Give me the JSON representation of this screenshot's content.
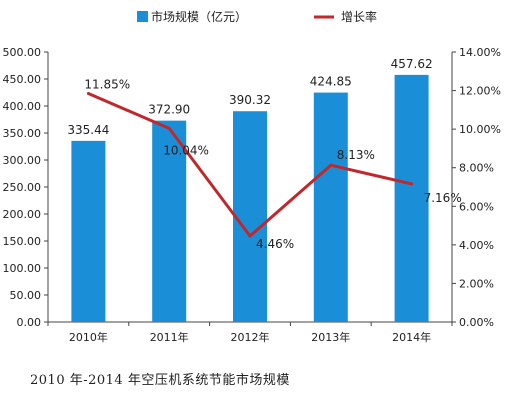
{
  "caption": "2010 年-2014 年空压机系统节能市场规模",
  "colors": {
    "bar": "#1a8fd8",
    "line": "#c0282c",
    "axis": "#444444"
  },
  "chart_data": {
    "type": "bar",
    "categories": [
      "2010年",
      "2011年",
      "2012年",
      "2013年",
      "2014年"
    ],
    "series": [
      {
        "name": "市场规模（亿元）",
        "type": "bar",
        "axis": "left",
        "values": [
          335.44,
          372.9,
          390.32,
          424.85,
          457.62
        ],
        "labels": [
          "335.44",
          "372.90",
          "390.32",
          "424.85",
          "457.62"
        ]
      },
      {
        "name": "增长率",
        "type": "line",
        "axis": "right",
        "values": [
          11.85,
          10.04,
          4.46,
          8.13,
          7.16
        ],
        "labels": [
          "11.85%",
          "10.04%",
          "4.46%",
          "8.13%",
          "7.16%"
        ]
      }
    ],
    "left_axis": {
      "ylim": [
        0,
        500
      ],
      "ticks": [
        "0.00",
        "50.00",
        "100.00",
        "150.00",
        "200.00",
        "250.00",
        "300.00",
        "350.00",
        "400.00",
        "450.00",
        "500.00"
      ]
    },
    "right_axis": {
      "ylim": [
        0,
        14
      ],
      "ticks": [
        "0.00%",
        "2.00%",
        "4.00%",
        "6.00%",
        "8.00%",
        "10.00%",
        "12.00%",
        "14.00%"
      ]
    },
    "legend": {
      "position": "top-center"
    },
    "grid": false
  }
}
